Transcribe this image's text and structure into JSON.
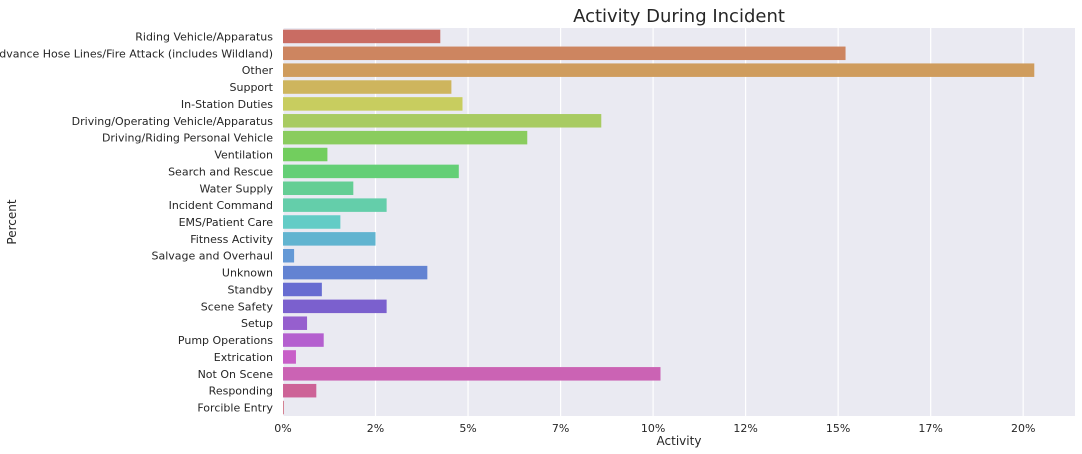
{
  "chart_data": {
    "type": "bar",
    "orientation": "horizontal",
    "title": "Activity During Incident",
    "xlabel": "Activity",
    "ylabel": "Percent",
    "xlim": [
      0,
      21.4
    ],
    "xticks": [
      0,
      2.5,
      5,
      7.5,
      10,
      12.5,
      15,
      17.5,
      20
    ],
    "xtick_labels": [
      "0%",
      "2%",
      "5%",
      "7%",
      "10%",
      "12%",
      "15%",
      "17%",
      "20%"
    ],
    "grid": true,
    "background": "#EAEAF2",
    "categories": [
      "Riding Vehicle/Apparatus",
      "Advance Hose Lines/Fire Attack (includes Wildland)",
      "Other",
      "Support",
      "In-Station Duties",
      "Driving/Operating Vehicle/Apparatus",
      "Driving/Riding Personal Vehicle",
      "Ventilation",
      "Search and Rescue",
      "Water Supply",
      "Incident Command",
      "EMS/Patient Care",
      "Fitness Activity",
      "Salvage and Overhaul",
      "Unknown",
      "Standby",
      "Scene Safety",
      "Setup",
      "Pump Operations",
      "Extrication",
      "Not On Scene",
      "Responding",
      "Forcible Entry"
    ],
    "values": [
      4.25,
      15.2,
      20.3,
      4.55,
      4.85,
      8.6,
      6.6,
      1.2,
      4.75,
      1.9,
      2.8,
      1.55,
      2.5,
      0.3,
      3.9,
      1.05,
      2.8,
      0.65,
      1.1,
      0.35,
      10.2,
      0.9,
      0.02
    ],
    "colors": [
      "#C96C63",
      "#CD8560",
      "#CF9C5D",
      "#CEB55D",
      "#C8CD5F",
      "#A8CB62",
      "#8ACC5E",
      "#72CE5E",
      "#64CF76",
      "#64CE94",
      "#64CEAA",
      "#63CCC6",
      "#61B4D0",
      "#6499D6",
      "#6383D2",
      "#676CD1",
      "#7B60CE",
      "#965FCE",
      "#B45FCF",
      "#C85FC8",
      "#CB63B4",
      "#CD6397",
      "#CE677C"
    ]
  }
}
